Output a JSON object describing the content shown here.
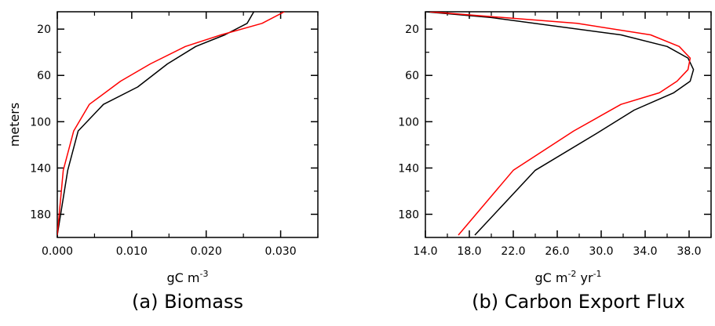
{
  "chart_data": [
    {
      "type": "line",
      "caption": "(a) Biomass",
      "xlabel": "gC m",
      "xlabel_exp": "-3",
      "ylabel": "meters",
      "xlim": [
        0.0,
        0.035
      ],
      "ylim": [
        200,
        5
      ],
      "y_reversed": true,
      "x_ticks": [
        0.0,
        0.01,
        0.02,
        0.03
      ],
      "x_tick_labels": [
        "0.000",
        "0.010",
        "0.020",
        "0.030"
      ],
      "x_minor_ticks": [
        0.005,
        0.015,
        0.025,
        0.035
      ],
      "y_ticks": [
        20,
        60,
        100,
        140,
        180
      ],
      "y_tick_labels": [
        "20",
        "60",
        "100",
        "140",
        "180"
      ],
      "y_minor_ticks": [
        40,
        80,
        120,
        160
      ],
      "series": [
        {
          "color": "#000000",
          "x": [
            0.0264,
            0.0255,
            0.0225,
            0.0186,
            0.0148,
            0.0108,
            0.0062,
            0.0028,
            0.0014,
            0.0
          ],
          "y": [
            5,
            15,
            25,
            35,
            50,
            70,
            85,
            108,
            142,
            198
          ]
        },
        {
          "color": "#ff0000",
          "x": [
            0.0305,
            0.0275,
            0.022,
            0.0172,
            0.0125,
            0.0085,
            0.0043,
            0.0022,
            0.0008,
            0.0
          ],
          "y": [
            5,
            15,
            25,
            35,
            50,
            65,
            85,
            108,
            142,
            198
          ]
        }
      ]
    },
    {
      "type": "line",
      "caption": "(b) Carbon Export Flux",
      "xlabel": "gC m",
      "xlabel_exp1": "-2",
      "xlabel_mid": " yr",
      "xlabel_exp2": "-1",
      "xlim": [
        14.0,
        40.0
      ],
      "ylim": [
        200,
        5
      ],
      "y_reversed": true,
      "x_ticks": [
        14,
        18,
        22,
        26,
        30,
        34,
        38
      ],
      "x_tick_labels": [
        "14.0",
        "18.0",
        "22.0",
        "26.0",
        "30.0",
        "34.0",
        "38.0"
      ],
      "x_minor_ticks": [
        16,
        20,
        24,
        28,
        32,
        36,
        40
      ],
      "y_ticks": [
        20,
        60,
        100,
        140,
        180
      ],
      "y_tick_labels": [
        "20",
        "60",
        "100",
        "140",
        "180"
      ],
      "y_minor_ticks": [
        40,
        80,
        120,
        160
      ],
      "series": [
        {
          "color": "#000000",
          "x": [
            14.0,
            20.0,
            31.8,
            36.0,
            37.9,
            38.4,
            38.1,
            36.6,
            33.0,
            29.6,
            24.0,
            18.5
          ],
          "y": [
            5,
            10,
            25,
            35,
            45,
            55,
            65,
            75,
            90,
            110,
            142,
            198
          ]
        },
        {
          "color": "#ff0000",
          "x": [
            14.4,
            27.8,
            34.5,
            37.1,
            38.1,
            37.9,
            36.9,
            35.3,
            31.8,
            27.5,
            22.0,
            17.0
          ],
          "y": [
            5,
            15,
            25,
            35,
            45,
            55,
            65,
            75,
            85,
            108,
            142,
            198
          ]
        }
      ]
    }
  ]
}
